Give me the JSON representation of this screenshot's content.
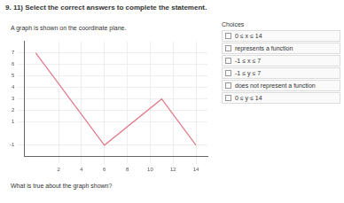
{
  "header": {
    "title": "9. 11) Select the correct answers to complete the statement."
  },
  "intro": "A graph is shown on the coordinate plane.",
  "choices": {
    "heading": "Choices",
    "options": [
      "0 ≤ x ≤ 14",
      "represents a function",
      "-1 ≤ x ≤ 7",
      "-1 ≤ y ≤ 7",
      "does not represent a function",
      "0 ≤ y ≤ 14"
    ]
  },
  "question": "What is true about the graph shown?",
  "chart_data": {
    "type": "line",
    "x": [
      0,
      6,
      11,
      14
    ],
    "values": [
      7,
      -1,
      3,
      -1
    ],
    "color": "#e0788a",
    "xlim": [
      -1,
      15
    ],
    "xticks": [
      2,
      4,
      6,
      8,
      10,
      12,
      14
    ],
    "ylim": [
      -2,
      8
    ],
    "yticks": [
      -1,
      1,
      2,
      3,
      4,
      5,
      6,
      7
    ],
    "grid": true
  }
}
